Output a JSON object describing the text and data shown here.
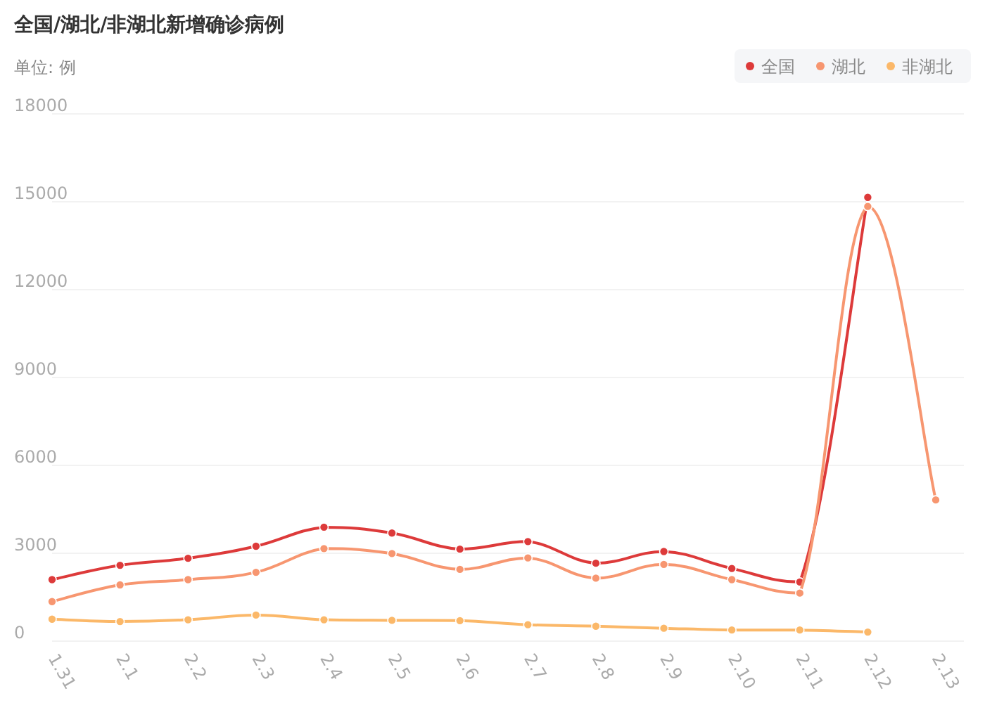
{
  "chart_data": {
    "type": "line",
    "title": "全国/湖北/非湖北新增确诊病例",
    "ylabel": "单位: 例",
    "categories": [
      "1.31",
      "2.1",
      "2.2",
      "2.3",
      "2.4",
      "2.5",
      "2.6",
      "2.7",
      "2.8",
      "2.9",
      "2.10",
      "2.11",
      "2.12",
      "2.13"
    ],
    "series": [
      {
        "name": "全国",
        "color": "#dd3a3a",
        "values": [
          2100,
          2590,
          2830,
          3240,
          3890,
          3690,
          3140,
          3400,
          2660,
          3060,
          2480,
          2020,
          15150,
          null
        ]
      },
      {
        "name": "湖北",
        "color": "#f79670",
        "values": [
          1350,
          1920,
          2100,
          2350,
          3160,
          2990,
          2450,
          2840,
          2150,
          2620,
          2100,
          1640,
          14840,
          4820
        ]
      },
      {
        "name": "非湖北",
        "color": "#fbb869",
        "values": [
          750,
          670,
          730,
          890,
          730,
          710,
          700,
          560,
          510,
          440,
          380,
          380,
          310,
          null
        ]
      }
    ],
    "ylim": [
      0,
      18000
    ],
    "yticks": [
      0,
      3000,
      6000,
      9000,
      12000,
      15000,
      18000
    ],
    "grid": "y",
    "legend": "top right",
    "marker": "circle",
    "line_style": "solid"
  }
}
